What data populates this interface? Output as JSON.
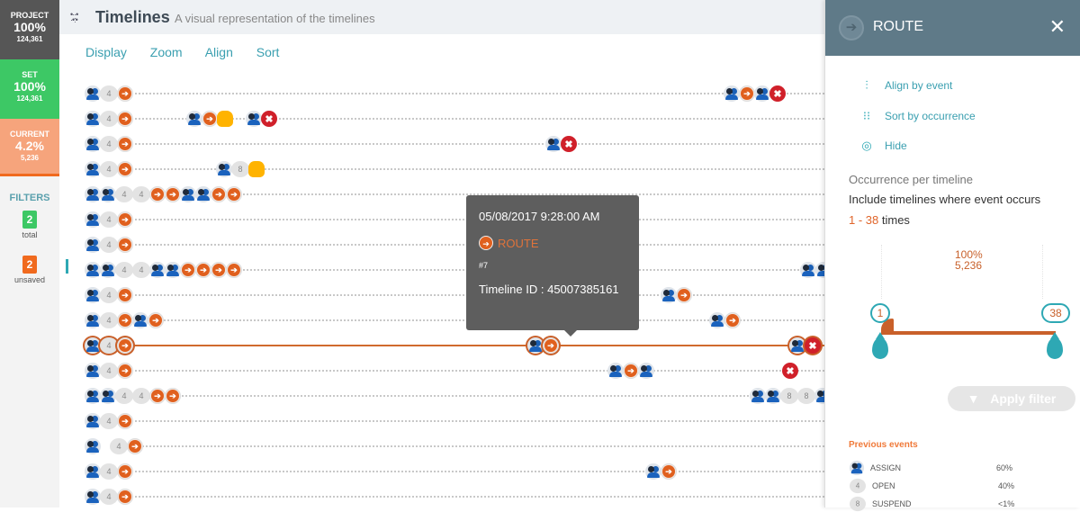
{
  "stats": [
    {
      "label": "PROJECT",
      "pct": "100%",
      "count": "124,361"
    },
    {
      "label": "SET",
      "pct": "100%",
      "count": "124,361"
    },
    {
      "label": "CURRENT",
      "pct": "4.2%",
      "count": "5,236"
    }
  ],
  "filters": {
    "title": "FILTERS",
    "total": "2",
    "total_label": "total",
    "unsaved": "2",
    "unsaved_label": "unsaved",
    "total_color": "#3dc865",
    "unsaved_color": "#f06a1e"
  },
  "header": {
    "title": "Timelines",
    "subtitle": "A visual representation of the timelines"
  },
  "menu": [
    "Display",
    "Zoom",
    "Align",
    "Sort"
  ],
  "event_legend": {
    "A": "assign-icon",
    "O": "open-count-icon",
    "R": "route-icon",
    "H": "suspend-hand-icon",
    "X": "close-icon"
  },
  "timelines": [
    [
      [
        "A",
        "4",
        "R"
      ],
      [
        "A",
        "R",
        "A",
        "X"
      ]
    ],
    [
      [
        "A",
        "4",
        "R"
      ],
      [
        "A",
        "R",
        "H"
      ],
      [
        "A",
        "X"
      ]
    ],
    [
      [
        "A",
        "4",
        "R"
      ],
      [
        "A",
        "X"
      ]
    ],
    [
      [
        "A",
        "4",
        "R"
      ],
      [
        "A",
        "8",
        "H"
      ]
    ],
    [
      [
        "A",
        "A",
        "4",
        "4",
        "R",
        "R",
        "A",
        "A",
        "R",
        "R"
      ]
    ],
    [
      [
        "A",
        "4",
        "R"
      ]
    ],
    [
      [
        "A",
        "4",
        "R"
      ]
    ],
    [
      [
        "A",
        "A",
        "4",
        "4",
        "A",
        "A",
        "R",
        "R",
        "R",
        "R"
      ],
      [
        "A",
        "A"
      ]
    ],
    [
      [
        "A",
        "4",
        "R"
      ],
      [
        "A",
        "R"
      ]
    ],
    [
      [
        "A",
        "4",
        "R",
        "A",
        "R"
      ],
      [
        "A",
        "R"
      ]
    ],
    [
      [
        "A",
        "4",
        "R"
      ],
      [
        "A",
        "R"
      ],
      [
        "A",
        "X"
      ]
    ],
    [
      [
        "A",
        "4",
        "R"
      ],
      [
        "A",
        "R",
        "A"
      ],
      [
        "X"
      ]
    ],
    [
      [
        "A",
        "A",
        "4",
        "4",
        "R",
        "R"
      ],
      [
        "A",
        "A",
        "8",
        "8",
        "A"
      ]
    ],
    [
      [
        "A",
        "4",
        "R"
      ]
    ],
    [
      [
        "A"
      ],
      [
        "4",
        "R"
      ]
    ],
    [
      [
        "A",
        "4",
        "R"
      ],
      [
        "A",
        "R"
      ]
    ],
    [
      [
        "A",
        "4",
        "R"
      ]
    ]
  ],
  "highlighted_row": 10,
  "tooltip": {
    "date": "05/08/2017 9:28:00 AM",
    "event": "ROUTE",
    "number": "#7",
    "timeline_id": "Timeline ID : 45007385161"
  },
  "panel": {
    "title": "ROUTE",
    "close": "✕",
    "actions": [
      "Align by event",
      "Sort by occurrence",
      "Hide"
    ],
    "occ_title": "Occurrence per timeline",
    "occ_desc": "Include timelines where event occurs",
    "range_min": "1",
    "range_sep": " - ",
    "range_max": "38",
    "range_suffix": " times",
    "pct": "100%",
    "count": "5,236",
    "apply": "Apply filter",
    "prev_title": "Previous events",
    "prev": [
      {
        "icon": "A",
        "name": "ASSIGN",
        "pct": "60%"
      },
      {
        "icon": "O",
        "num": "4",
        "name": "OPEN",
        "pct": "40%"
      },
      {
        "icon": "O",
        "num": "8",
        "name": "SUSPEND",
        "pct": "<1%"
      }
    ]
  }
}
